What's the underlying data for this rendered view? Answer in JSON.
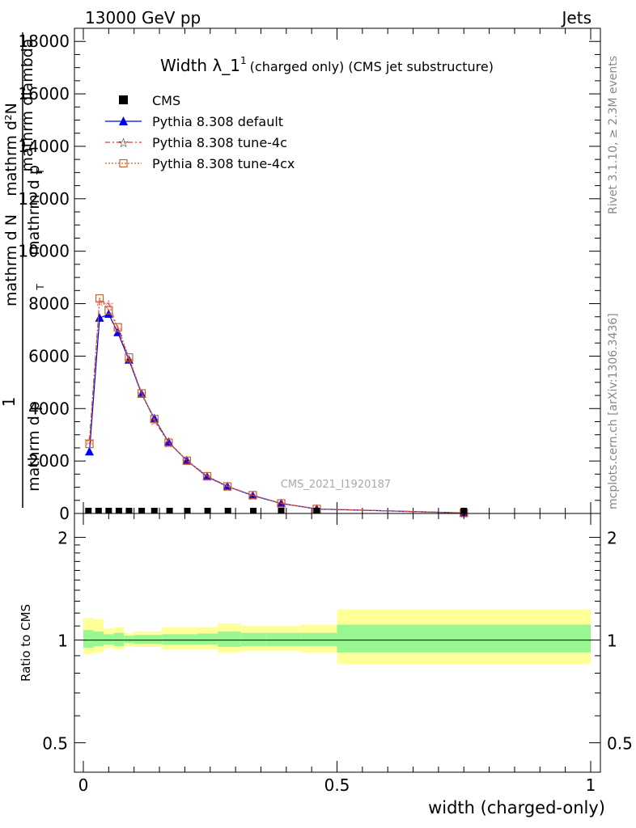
{
  "header": {
    "left": "13000 GeV pp",
    "right": "Jets"
  },
  "side_labels": {
    "rivet": "Rivet 3.1.10, ≥ 2.3M events",
    "mcplots": "mcplots.cern.ch [arXiv:1306.3436]"
  },
  "chart_data": {
    "type": "line",
    "title": "Width λ_1¹ (charged only) (CMS jet substructure)",
    "title_parts": {
      "main": "Width λ_1",
      "sup": "1",
      "sub": "(charged only) (CMS jet substructure)"
    },
    "watermark": "CMS_2021_I1920187",
    "ylabel_parts": {
      "prefix": "1",
      "frac1_num": "mathrm d N",
      "frac1_den": "mathrm d p",
      "frac2_num": "mathrm d²N",
      "frac2_den": "mathrm d p",
      "frac2_den2": "mathrm dlambda",
      "sub_T": "T"
    },
    "xlabel": "width (charged-only)",
    "xlim": [
      0,
      1
    ],
    "ylim": [
      0,
      18500
    ],
    "y_ticks": [
      0,
      2000,
      4000,
      6000,
      8000,
      10000,
      12000,
      14000,
      16000,
      18000
    ],
    "y_tick_labels": [
      "0",
      "2000",
      "4000",
      "6000",
      "8000",
      "10000",
      "12000",
      "14000",
      "16000",
      "18000"
    ],
    "legend": [
      {
        "label": "CMS",
        "color": "#000000",
        "marker": "square"
      },
      {
        "label": "Pythia 8.308 default",
        "color": "#0000ee",
        "marker": "triangle"
      },
      {
        "label": "Pythia 8.308 tune-4c",
        "color": "#e83b3b",
        "marker": "star"
      },
      {
        "label": "Pythia 8.308 tune-4cx",
        "color": "#c8642a",
        "marker": "open-square"
      }
    ],
    "cms": {
      "x": [
        0.01,
        0.03,
        0.05,
        0.07,
        0.09,
        0.115,
        0.14,
        0.17,
        0.205,
        0.245,
        0.285,
        0.335,
        0.39,
        0.46,
        0.75
      ],
      "y": [
        1,
        1,
        1,
        1,
        1,
        1,
        1,
        1,
        1,
        1,
        1,
        1,
        1,
        1,
        1
      ]
    },
    "series": [
      {
        "name": "Pythia 8.308 default",
        "x": [
          0.012,
          0.032,
          0.05,
          0.068,
          0.09,
          0.115,
          0.14,
          0.168,
          0.204,
          0.244,
          0.284,
          0.334,
          0.39,
          0.46,
          0.75
        ],
        "y": [
          2350,
          7450,
          7600,
          6900,
          5850,
          4550,
          3620,
          2720,
          2020,
          1400,
          1030,
          680,
          380,
          170,
          20
        ]
      },
      {
        "name": "Pythia 8.308 tune-4c",
        "x": [
          0.012,
          0.032,
          0.05,
          0.068,
          0.09,
          0.115,
          0.14,
          0.168,
          0.204,
          0.244,
          0.284,
          0.334,
          0.39,
          0.46,
          0.75
        ],
        "y": [
          2800,
          8100,
          8000,
          7050,
          5880,
          4600,
          3540,
          2700,
          2030,
          1430,
          1040,
          690,
          390,
          175,
          20
        ]
      },
      {
        "name": "Pythia 8.308 tune-4cx",
        "x": [
          0.012,
          0.032,
          0.05,
          0.068,
          0.09,
          0.115,
          0.14,
          0.168,
          0.204,
          0.244,
          0.284,
          0.334,
          0.39,
          0.46,
          0.75
        ],
        "y": [
          2650,
          8200,
          7750,
          7100,
          5950,
          4580,
          3600,
          2700,
          2010,
          1420,
          1030,
          700,
          385,
          175,
          20
        ]
      }
    ],
    "ratio": {
      "ylabel": "Ratio to CMS",
      "y_ticks": [
        0.5,
        1,
        2
      ],
      "y_tick_labels": [
        "0.5",
        "1",
        "2"
      ],
      "x_ticks": [
        0,
        0.5,
        1
      ],
      "x_tick_labels": [
        "0",
        "0.5",
        "1"
      ],
      "bins": [
        {
          "x0": 0.0,
          "x1": 0.02,
          "inner": [
            0.95,
            1.07
          ],
          "outer": [
            0.91,
            1.16
          ]
        },
        {
          "x0": 0.02,
          "x1": 0.04,
          "inner": [
            0.96,
            1.06
          ],
          "outer": [
            0.92,
            1.15
          ]
        },
        {
          "x0": 0.04,
          "x1": 0.06,
          "inner": [
            0.97,
            1.04
          ],
          "outer": [
            0.95,
            1.08
          ]
        },
        {
          "x0": 0.06,
          "x1": 0.08,
          "inner": [
            0.96,
            1.05
          ],
          "outer": [
            0.94,
            1.09
          ]
        },
        {
          "x0": 0.08,
          "x1": 0.1,
          "inner": [
            0.98,
            1.03
          ],
          "outer": [
            0.96,
            1.05
          ]
        },
        {
          "x0": 0.1,
          "x1": 0.13,
          "inner": [
            0.975,
            1.035
          ],
          "outer": [
            0.955,
            1.06
          ]
        },
        {
          "x0": 0.13,
          "x1": 0.155,
          "inner": [
            0.975,
            1.035
          ],
          "outer": [
            0.955,
            1.06
          ]
        },
        {
          "x0": 0.155,
          "x1": 0.185,
          "inner": [
            0.97,
            1.04
          ],
          "outer": [
            0.94,
            1.09
          ]
        },
        {
          "x0": 0.185,
          "x1": 0.225,
          "inner": [
            0.97,
            1.04
          ],
          "outer": [
            0.94,
            1.09
          ]
        },
        {
          "x0": 0.225,
          "x1": 0.265,
          "inner": [
            0.97,
            1.045
          ],
          "outer": [
            0.94,
            1.09
          ]
        },
        {
          "x0": 0.265,
          "x1": 0.31,
          "inner": [
            0.955,
            1.06
          ],
          "outer": [
            0.92,
            1.12
          ]
        },
        {
          "x0": 0.31,
          "x1": 0.36,
          "inner": [
            0.96,
            1.05
          ],
          "outer": [
            0.93,
            1.1
          ]
        },
        {
          "x0": 0.36,
          "x1": 0.43,
          "inner": [
            0.96,
            1.05
          ],
          "outer": [
            0.93,
            1.1
          ]
        },
        {
          "x0": 0.43,
          "x1": 0.5,
          "inner": [
            0.96,
            1.05
          ],
          "outer": [
            0.92,
            1.11
          ]
        },
        {
          "x0": 0.5,
          "x1": 1.0,
          "inner": [
            0.92,
            1.11
          ],
          "outer": [
            0.85,
            1.23
          ]
        }
      ]
    },
    "colors": {
      "inner_band": "#99f791",
      "outer_band": "#ffff99"
    }
  }
}
